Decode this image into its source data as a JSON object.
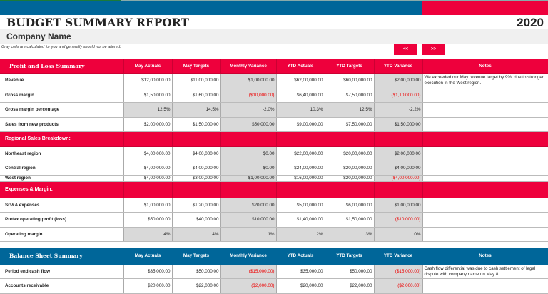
{
  "header": {
    "title": "BUDGET SUMMARY REPORT",
    "year": "2020",
    "company": "Company Name",
    "note": "Gray cells are calculated for you and generally should not be altered.",
    "prev_label": "<<",
    "next_label": ">>"
  },
  "colors": {
    "red": "#ee003c",
    "blue": "#006699",
    "gray": "#d9d9d9",
    "negative": "#ee0000"
  },
  "columns": [
    "May Actuals",
    "May Targets",
    "Monthly Variance",
    "YTD Actuals",
    "YTD Targets",
    "YTD Variance",
    "Notes"
  ],
  "pl": {
    "title": "Profit and Loss Summary",
    "rows": [
      {
        "label": "Revenue",
        "v": [
          "$12,00,000.00",
          "$11,00,000.00",
          "$1,00,000.00",
          "$62,00,000.00",
          "$60,00,000.00",
          "$2,00,000.00"
        ],
        "notes": "We exceeded our May revenue target by 9%, due to stronger execution in the West region."
      },
      {
        "label": "Gross margin",
        "v": [
          "$1,50,000.00",
          "$1,60,000.00",
          "($10,000.00)",
          "$6,40,000.00",
          "$7,50,000.00",
          "($1,10,000.00)"
        ],
        "notes": ""
      },
      {
        "label": "Gross margin percentage",
        "v": [
          "12.5%",
          "14.5%",
          "-2.0%",
          "10.3%",
          "12.5%",
          "-2.2%"
        ],
        "notes": ""
      },
      {
        "label": "Sales from new products",
        "v": [
          "$2,00,000.00",
          "$1,50,000.00",
          "$50,000.00",
          "$9,00,000.00",
          "$7,50,000.00",
          "$1,50,000.00"
        ],
        "notes": ""
      }
    ],
    "regional_title": "Regional Sales Breakdown:",
    "regional": [
      {
        "label": "Northeast region",
        "v": [
          "$4,00,000.00",
          "$4,00,000.00",
          "$0.00",
          "$22,00,000.00",
          "$20,00,000.00",
          "$2,00,000.00"
        ],
        "notes": ""
      },
      {
        "label": "Central region",
        "v": [
          "$4,00,000.00",
          "$4,00,000.00",
          "$0.00",
          "$24,00,000.00",
          "$20,00,000.00",
          "$4,00,000.00"
        ],
        "notes": ""
      },
      {
        "label": "West region",
        "v": [
          "$4,00,000.00",
          "$3,00,000.00",
          "$1,00,000.00",
          "$16,00,000.00",
          "$20,00,000.00",
          "($4,00,000.00)"
        ],
        "notes": ""
      }
    ],
    "expenses_title": "Expenses & Margin:",
    "expenses": [
      {
        "label": "SG&A expenses",
        "v": [
          "$1,00,000.00",
          "$1,20,000.00",
          "$20,000.00",
          "$5,00,000.00",
          "$6,00,000.00",
          "$1,00,000.00"
        ],
        "notes": ""
      },
      {
        "label": "Pretax operating profit (loss)",
        "v": [
          "$50,000.00",
          "$40,000.00",
          "$10,000.00",
          "$1,40,000.00",
          "$1,50,000.00",
          "($10,000.00)"
        ],
        "notes": ""
      },
      {
        "label": "Operating margin",
        "v": [
          "4%",
          "4%",
          "1%",
          "2%",
          "3%",
          "0%"
        ],
        "notes": ""
      }
    ]
  },
  "bs": {
    "title": "Balance Sheet Summary",
    "rows": [
      {
        "label": "Period end cash flow",
        "v": [
          "$35,000.00",
          "$50,000.00",
          "($15,000.00)",
          "$35,000.00",
          "$50,000.00",
          "($15,000.00)"
        ],
        "notes": "Cash flow differential was due to cash settlement of legal dispute with company name on May 8."
      },
      {
        "label": "Accounts receivable",
        "v": [
          "$20,000.00",
          "$22,000.00",
          "($2,000.00)",
          "$20,000.00",
          "$22,000.00",
          "($2,000.00)"
        ],
        "notes": ""
      }
    ]
  }
}
